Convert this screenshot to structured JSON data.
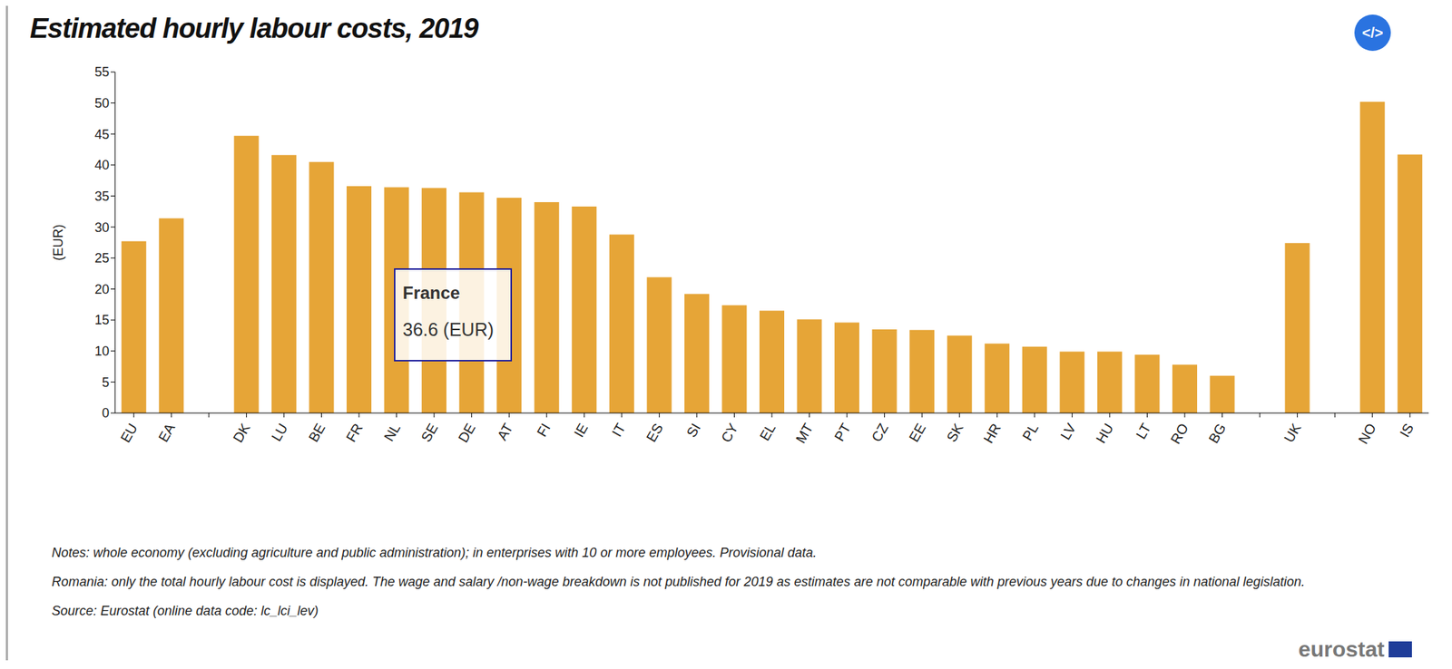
{
  "chart_data": {
    "type": "bar",
    "title": "Estimated hourly labour costs, 2019",
    "y_label": "(EUR)",
    "categories": [
      "EU",
      "EA",
      null,
      "DK",
      "LU",
      "BE",
      "FR",
      "NL",
      "SE",
      "DE",
      "AT",
      "FI",
      "IE",
      "IT",
      "ES",
      "SI",
      "CY",
      "EL",
      "MT",
      "PT",
      "CZ",
      "EE",
      "SK",
      "HR",
      "PL",
      "LV",
      "HU",
      "LT",
      "RO",
      "BG",
      null,
      "UK",
      null,
      "NO",
      "IS"
    ],
    "values": [
      27.7,
      31.4,
      null,
      44.7,
      41.6,
      40.5,
      36.6,
      36.4,
      36.3,
      35.6,
      34.7,
      34.0,
      33.3,
      28.8,
      21.9,
      19.2,
      17.4,
      16.5,
      15.1,
      14.6,
      13.5,
      13.4,
      12.5,
      11.2,
      10.7,
      9.9,
      9.9,
      9.4,
      7.8,
      6.0,
      null,
      27.4,
      null,
      50.2,
      41.7
    ],
    "color": "#e6a537",
    "ylim": [
      0,
      55
    ],
    "yticks": [
      0,
      5,
      10,
      15,
      20,
      25,
      30,
      35,
      40,
      45,
      50,
      55
    ],
    "grid": false,
    "annotations": [
      "France",
      "36.6 (EUR)"
    ],
    "notes": [
      "Notes: whole economy (excluding agriculture and public administration); in enterprises with 10 or more employees. Provisional data.",
      "Romania: only the total hourly labour cost is displayed. The wage and salary /non-wage breakdown is not published for 2019 as estimates are not comparable with previous years due to changes in national legislation.",
      "Source: Eurostat (online data code: lc_lci_lev)"
    ],
    "button": "</>",
    "logo": "eurostat"
  }
}
